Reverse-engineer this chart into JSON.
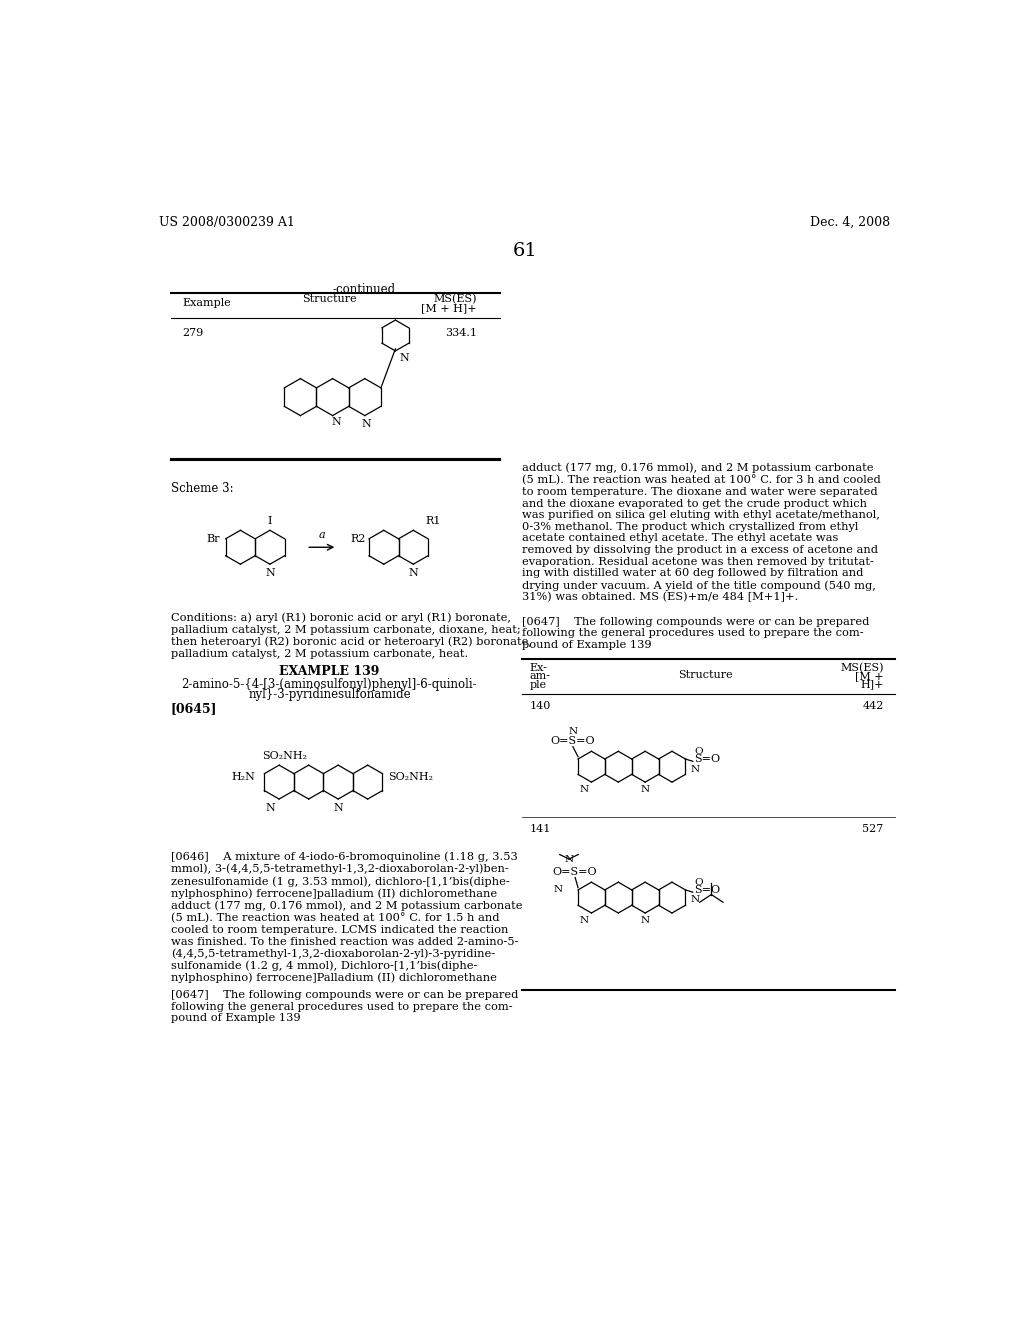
{
  "bg_color": "#ffffff",
  "header_left": "US 2008/0300239 A1",
  "header_right": "Dec. 4, 2008",
  "page_number": "61",
  "continued_text": "-continued",
  "scheme_label": "Scheme 3:",
  "conditions_text": "Conditions: a) aryl (R1) boronic acid or aryl (R1) boronate,\npalladium catalyst, 2 M potassium carbonate, dioxane, heat;\nthen heteroaryl (R2) boronic acid or heteroaryl (R2) boronate,\npalladium catalyst, 2 M potassium carbonate, heat.",
  "example139_title": "EXAMPLE 139",
  "example139_name": "2-amino-5-{4-[3-(aminosulfonyl)phenyl]-6-quinoli-\nnyl}-3-pyridinesulfonamide",
  "ref0645": "[0645]",
  "paragraph0646": "[0646]    A mixture of 4-iodo-6-bromoquinoline (1.18 g, 3.53\nmmol), 3-(4,4,5,5-tetramethyl-1,3,2-dioxaborolan-2-yl)ben-\nzenesulfonamide (1 g, 3.53 mmol), dichloro-[1,1’bis(diphe-\nnylphosphino) ferrocene]palladium (II) dichloromethane\nadduct (177 mg, 0.176 mmol), and 2 M potassium carbonate\n(5 mL). The reaction was heated at 100° C. for 1.5 h and\ncooled to room temperature. LCMS indicated the reaction\nwas finished. To the finished reaction was added 2-amino-5-\n(4,4,5,5-tetramethyl-1,3,2-dioxaborolan-2-yl)-3-pyridine-\nsulfonamide (1.2 g, 4 mmol), Dichloro-[1,1’bis(diphe-\nnylphosphino) ferrocene]Palladium (II) dichloromethane",
  "paragraph0647_left": "[0647]    The following compounds were or can be prepared\nfollowing the general procedures used to prepare the com-\npound of Example 139",
  "paragraph_right_top": "adduct (177 mg, 0.176 mmol), and 2 M potassium carbonate\n(5 mL). The reaction was heated at 100° C. for 3 h and cooled\nto room temperature. The dioxane and water were separated\nand the dioxane evaporated to get the crude product which\nwas purified on silica gel eluting with ethyl acetate/methanol,\n0-3% methanol. The product which crystallized from ethyl\nacetate contained ethyl acetate. The ethyl acetate was\nremoved by dissolving the product in a excess of acetone and\nevaporation. Residual acetone was then removed by tritutat-\ning with distilled water at 60 deg followed by filtration and\ndrying under vacuum. A yield of the title compound (540 mg,\n31%) was obtained. MS (ES)+m/e 484 [M+1]+.",
  "paragraph0647_right": "[0647]    The following compounds were or can be prepared\nfollowing the general procedures used to prepare the com-\npound of Example 139"
}
